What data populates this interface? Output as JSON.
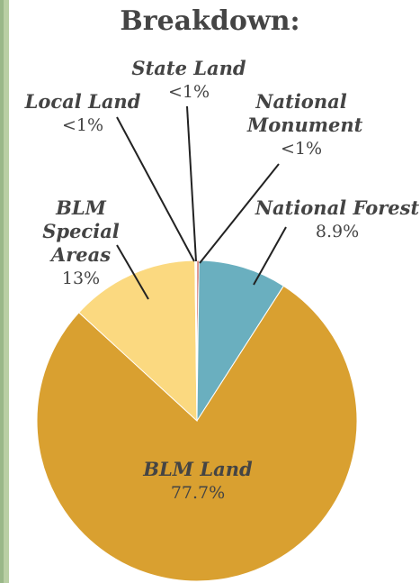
{
  "chart_data": {
    "type": "pie",
    "title": "Breakdown:",
    "categories": [
      "National Monument",
      "National Forest",
      "BLM Land",
      "BLM Special Areas",
      "Local Land",
      "State Land"
    ],
    "values": [
      0.2,
      8.9,
      77.7,
      13,
      0.1,
      0.1
    ],
    "value_labels": [
      "<1%",
      "8.9%",
      "77.7%",
      "13%",
      "<1%",
      "<1%"
    ],
    "colors": [
      "#c0392b",
      "#6aafbf",
      "#d9a030",
      "#fbd980",
      "#f3ecd8",
      "#ffffff"
    ]
  }
}
